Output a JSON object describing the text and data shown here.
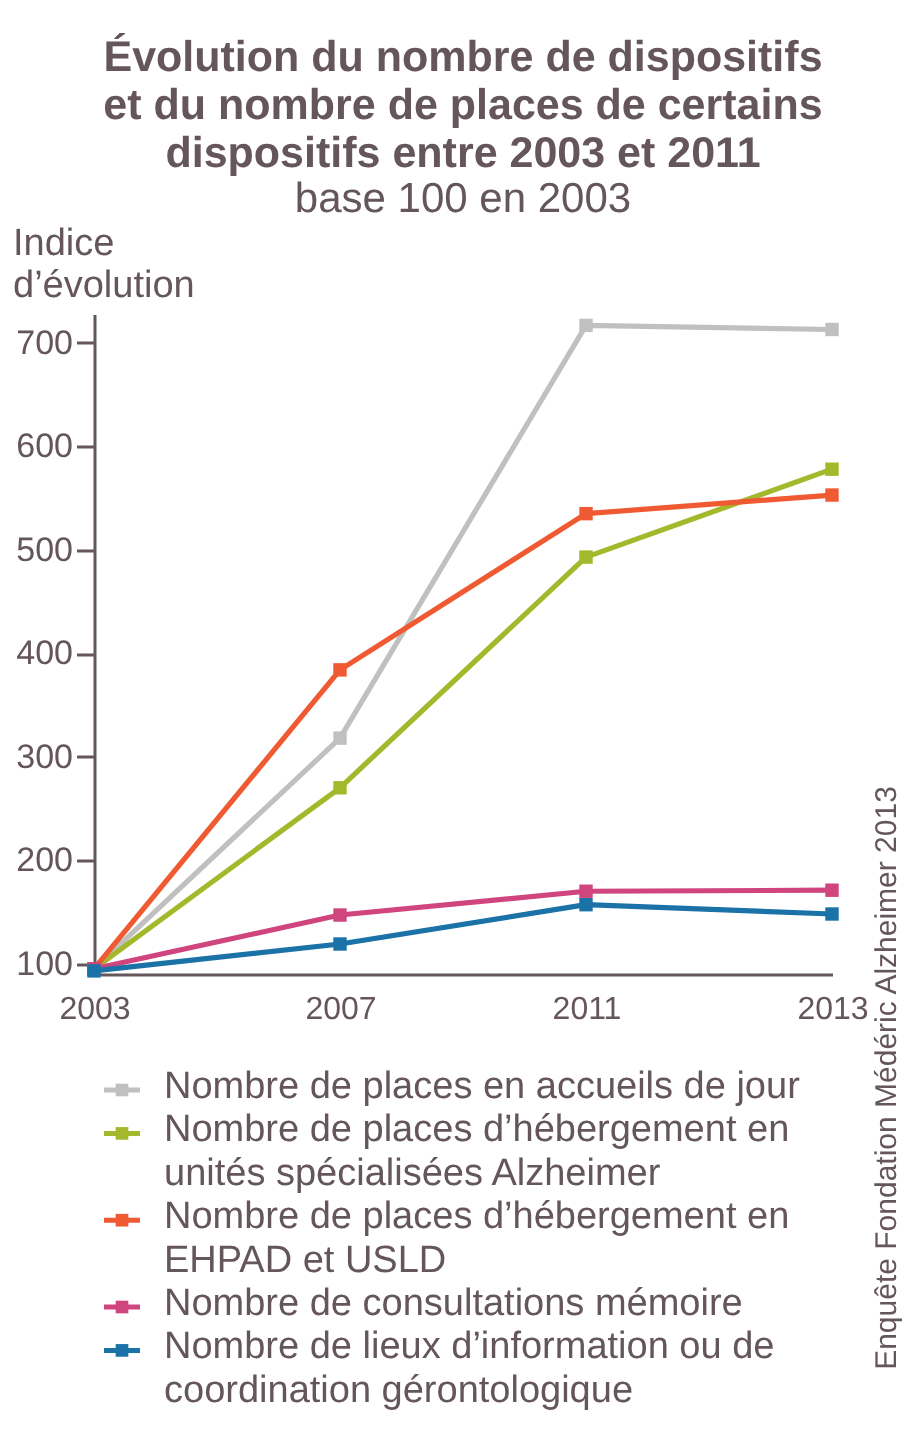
{
  "chart_data": {
    "type": "line",
    "title": "Évolution du nombre de dispositifs et du nombre de places de certains dispositifs entre 2003 et 2011",
    "subtitle": "base 100 en 2003",
    "ylabel": "Indice d’évolution",
    "categories": [
      "2003",
      "2007",
      "2011",
      "2013"
    ],
    "series": [
      {
        "name": "Nombre de places en accueils de jour",
        "color": "#c0c0c0",
        "values": [
          95,
          318,
          717,
          713
        ]
      },
      {
        "name": "Nombre de places d’hébergement en unités spécialisées Alzheimer",
        "color": "#a3b92b",
        "values": [
          95,
          270,
          493,
          578
        ]
      },
      {
        "name": "Nombre de places d’hébergement en EHPAD et USLD",
        "color": "#f05a32",
        "values": [
          95,
          384,
          535,
          553
        ]
      },
      {
        "name": "Nombre de consultations mémoire",
        "color": "#d0457e",
        "values": [
          95,
          147,
          170,
          171
        ]
      },
      {
        "name": "Nombre de lieux d’information ou de coordination gérontologique",
        "color": "#1b72a6",
        "values": [
          93,
          119,
          157,
          148
        ]
      }
    ],
    "ylim": [
      90,
      728
    ],
    "yticks": [
      100,
      200,
      300,
      400,
      500,
      600,
      700
    ],
    "grid": false,
    "legend": "bottom",
    "marker": "square",
    "annotations": [
      "Enquête Fondation Médéric Alzheimer 2013"
    ]
  }
}
